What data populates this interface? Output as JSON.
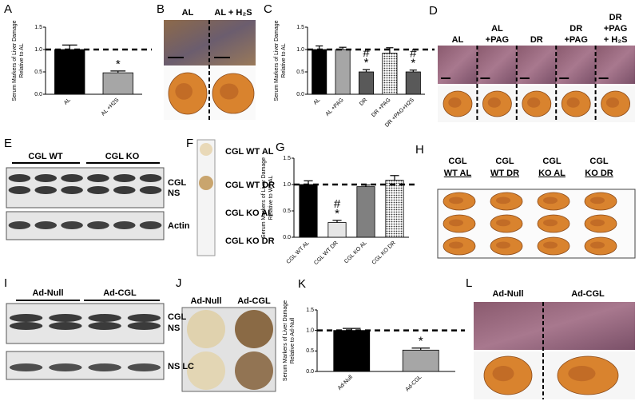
{
  "chart_data": [
    {
      "type": "bar",
      "ylabel": [
        "Serum Markers of Liver Damage",
        "Relative to AL"
      ],
      "categories": [
        "AL",
        "AL +H2S"
      ],
      "values": [
        1.0,
        0.48
      ],
      "errors": [
        0.1,
        0.04
      ],
      "colors": [
        "#000000",
        "#a6a6a6"
      ],
      "hatch": [
        false,
        false
      ],
      "annotations": [
        null,
        [
          "*"
        ]
      ],
      "reference_line": 1,
      "ylim": [
        0,
        1.5
      ],
      "yticks": [
        {
          "value": 0,
          "label": "0.0"
        },
        0.5,
        {
          "value": 1,
          "label": "1.0"
        },
        1.5
      ]
    },
    {
      "type": "bar",
      "ylabel": [
        "Serum Markers of Liver Damage",
        "Relative to AL"
      ],
      "categories": [
        "AL",
        "AL +PAG",
        "DR",
        "DR +PAG",
        "DR +PAG+H2S"
      ],
      "values": [
        1.0,
        1.0,
        0.5,
        0.92,
        0.5
      ],
      "errors": [
        0.08,
        0.05,
        0.05,
        0.12,
        0.04
      ],
      "colors": [
        "#000000",
        "#a6a6a6",
        "#595959",
        "#d9d9d9",
        "#595959"
      ],
      "hatch": [
        false,
        false,
        false,
        true,
        false
      ],
      "annotations": [
        null,
        null,
        [
          "#",
          "*"
        ],
        null,
        [
          "#",
          "*"
        ]
      ],
      "reference_line": 1,
      "ylim": [
        0,
        1.5
      ],
      "yticks": [
        {
          "value": 0,
          "label": "0.0"
        },
        0.5,
        {
          "value": 1,
          "label": "1.0"
        },
        1.5
      ]
    },
    {
      "type": "bar",
      "ylabel": [
        "Serum Markers of Liver Damage",
        "Relative to WT AL"
      ],
      "categories": [
        "CGL WT AL",
        "CGL WT DR",
        "CGL KO AL",
        "CGL KO DR"
      ],
      "values": [
        1.0,
        0.28,
        0.96,
        1.08
      ],
      "errors": [
        0.07,
        0.04,
        0.03,
        0.09
      ],
      "colors": [
        "#000000",
        "#e6e6e6",
        "#808080",
        "#d9d9d9"
      ],
      "hatch": [
        false,
        false,
        false,
        true
      ],
      "annotations": [
        null,
        [
          "#",
          "*"
        ],
        null,
        null
      ],
      "reference_line": 1,
      "ylim": [
        0,
        1.5
      ],
      "yticks": [
        {
          "value": 0,
          "label": "0.0"
        },
        0.5,
        {
          "value": 1,
          "label": "1.0"
        },
        1.5
      ]
    },
    {
      "type": "bar",
      "ylabel": [
        "Serum Markers of Liver Damage",
        "Relative to Ad-Null"
      ],
      "categories": [
        "Ad-Null",
        "Ad-CGL"
      ],
      "values": [
        1.0,
        0.52
      ],
      "errors": [
        0.05,
        0.05
      ],
      "colors": [
        "#000000",
        "#a6a6a6"
      ],
      "hatch": [
        false,
        false
      ],
      "annotations": [
        null,
        [
          "*"
        ]
      ],
      "reference_line": 1,
      "ylim": [
        0,
        1.5
      ],
      "yticks": [
        {
          "value": 0,
          "label": "0.0"
        },
        0.5,
        {
          "value": 1,
          "label": "1.0"
        },
        1.5
      ]
    }
  ],
  "panel_letters": [
    "A",
    "B",
    "C",
    "D",
    "E",
    "F",
    "G",
    "H",
    "I",
    "J",
    "K",
    "L"
  ],
  "B": {
    "labels": [
      "AL",
      "AL + H₂S"
    ]
  },
  "D": {
    "labels": [
      [
        "AL"
      ],
      [
        "AL",
        "+PAG"
      ],
      [
        "DR"
      ],
      [
        "DR",
        "+PAG"
      ],
      [
        "DR",
        "+PAG",
        "+ H₂S"
      ]
    ]
  },
  "E": {
    "groups": [
      "CGL WT",
      "CGL KO"
    ],
    "bands": [
      "CGL",
      "NS",
      "Actin"
    ]
  },
  "F": {
    "labels": [
      "CGL WT AL",
      "CGL WT DR",
      "CGL KO AL",
      "CGL KO DR"
    ]
  },
  "H": {
    "labels": [
      [
        "CGL",
        "WT AL"
      ],
      [
        "CGL",
        "WT DR"
      ],
      [
        "CGL",
        "KO AL"
      ],
      [
        "CGL",
        "KO DR"
      ]
    ]
  },
  "I": {
    "groups": [
      "Ad-Null",
      "Ad-CGL"
    ],
    "bands": [
      "CGL",
      "NS",
      "NS LC"
    ]
  },
  "J": {
    "labels": [
      "Ad-Null",
      "Ad-CGL"
    ]
  },
  "L": {
    "labels": [
      "Ad-Null",
      "Ad-CGL"
    ]
  }
}
